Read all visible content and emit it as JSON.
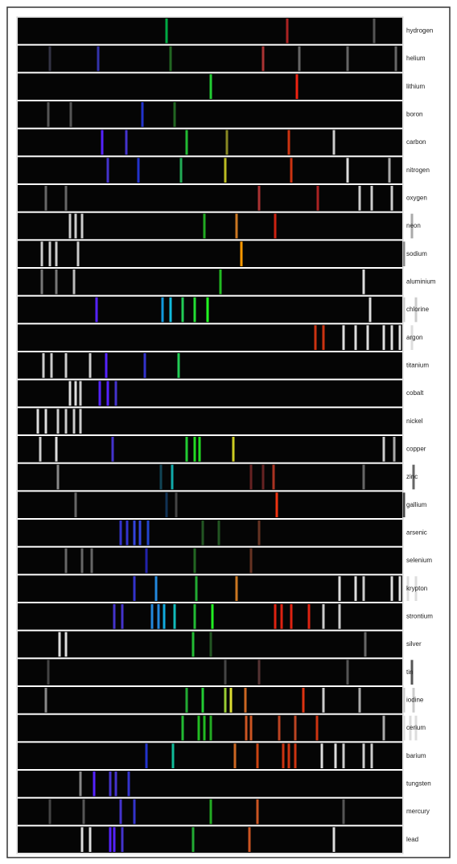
{
  "elements": [
    "hydrogen",
    "helium",
    "lithium",
    "boron",
    "carbon",
    "nitrogen",
    "oxygen",
    "neon",
    "sodium",
    "aluminium",
    "chlorine",
    "argon",
    "titanium",
    "cobalt",
    "nickel",
    "copper",
    "zinc",
    "gallium",
    "arsenic",
    "selenium",
    "krypton",
    "strontium",
    "silver",
    "tin",
    "iodine",
    "cerium",
    "barium",
    "tungsten",
    "mercury",
    "lead"
  ]
}
